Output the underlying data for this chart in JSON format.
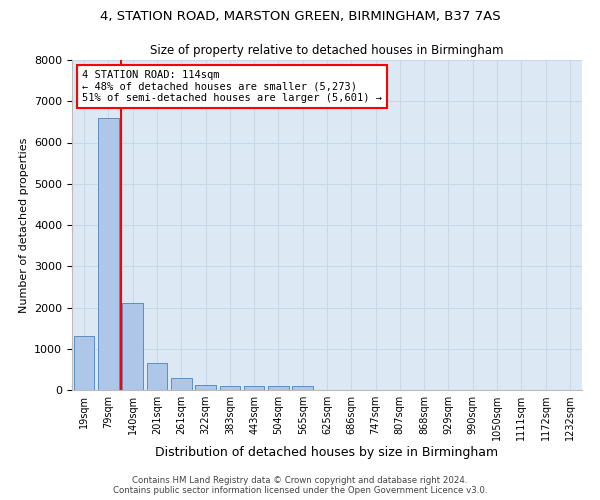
{
  "title_line1": "4, STATION ROAD, MARSTON GREEN, BIRMINGHAM, B37 7AS",
  "title_line2": "Size of property relative to detached houses in Birmingham",
  "xlabel": "Distribution of detached houses by size in Birmingham",
  "ylabel": "Number of detached properties",
  "categories": [
    "19sqm",
    "79sqm",
    "140sqm",
    "201sqm",
    "261sqm",
    "322sqm",
    "383sqm",
    "443sqm",
    "504sqm",
    "565sqm",
    "625sqm",
    "686sqm",
    "747sqm",
    "807sqm",
    "868sqm",
    "929sqm",
    "990sqm",
    "1050sqm",
    "1111sqm",
    "1172sqm",
    "1232sqm"
  ],
  "bar_values": [
    1300,
    6600,
    2100,
    650,
    280,
    130,
    90,
    90,
    90,
    90,
    0,
    0,
    0,
    0,
    0,
    0,
    0,
    0,
    0,
    0,
    0
  ],
  "bar_color": "#aec6e8",
  "bar_edgecolor": "#5a8fc2",
  "annotation_title": "4 STATION ROAD: 114sqm",
  "annotation_line1": "← 48% of detached houses are smaller (5,273)",
  "annotation_line2": "51% of semi-detached houses are larger (5,601) →",
  "annotation_box_color": "white",
  "annotation_box_edgecolor": "red",
  "vline_color": "red",
  "ylim": [
    0,
    8000
  ],
  "yticks": [
    0,
    1000,
    2000,
    3000,
    4000,
    5000,
    6000,
    7000,
    8000
  ],
  "grid_color": "#c8d8e8",
  "background_color": "#dce9f5",
  "footer_line1": "Contains HM Land Registry data © Crown copyright and database right 2024.",
  "footer_line2": "Contains public sector information licensed under the Open Government Licence v3.0."
}
